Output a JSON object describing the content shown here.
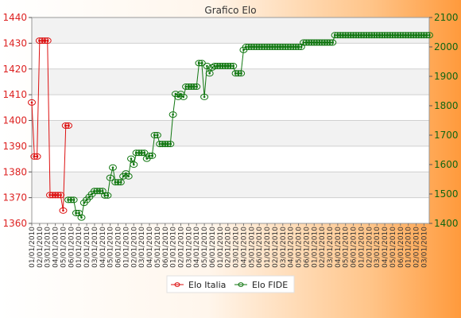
{
  "chart_data": {
    "type": "line",
    "title": "Grafico Elo",
    "left_axis": {
      "ylim": [
        1360,
        1440
      ],
      "ticks": [
        1360,
        1370,
        1380,
        1390,
        1400,
        1410,
        1420,
        1430,
        1440
      ],
      "color": "#dd2222"
    },
    "right_axis": {
      "ylim": [
        1400,
        2100
      ],
      "ticks": [
        1400,
        1500,
        1600,
        1700,
        1800,
        1900,
        2000,
        2100
      ],
      "color": "#116611"
    },
    "x_count": 153,
    "x_tick_labels": [
      "01/01/2010",
      "02/01/2010",
      "03/01/2010",
      "04/01/2010",
      "05/01/2010",
      "06/01/2010"
    ],
    "series": [
      {
        "name": "Elo Italia",
        "axis": "left",
        "color": "#dd1111",
        "points": [
          [
            0,
            1407
          ],
          [
            1,
            1386
          ],
          [
            2,
            1386
          ],
          [
            3,
            1431
          ],
          [
            4,
            1431
          ],
          [
            5,
            1431
          ],
          [
            6,
            1431
          ],
          [
            7,
            1371
          ],
          [
            8,
            1371
          ],
          [
            9,
            1371
          ],
          [
            10,
            1371
          ],
          [
            11,
            1371
          ],
          [
            12,
            1365
          ],
          [
            13,
            1398
          ],
          [
            14,
            1398
          ]
        ]
      },
      {
        "name": "Elo FIDE",
        "axis": "right",
        "color": "#117711",
        "points": [
          [
            14,
            1480
          ],
          [
            15,
            1480
          ],
          [
            16,
            1480
          ],
          [
            17,
            1435
          ],
          [
            18,
            1435
          ],
          [
            19,
            1420
          ],
          [
            20,
            1470
          ],
          [
            21,
            1480
          ],
          [
            22,
            1490
          ],
          [
            23,
            1500
          ],
          [
            24,
            1510
          ],
          [
            25,
            1510
          ],
          [
            26,
            1510
          ],
          [
            27,
            1510
          ],
          [
            28,
            1495
          ],
          [
            29,
            1495
          ],
          [
            30,
            1555
          ],
          [
            31,
            1590
          ],
          [
            32,
            1540
          ],
          [
            33,
            1540
          ],
          [
            34,
            1540
          ],
          [
            35,
            1560
          ],
          [
            36,
            1570
          ],
          [
            37,
            1560
          ],
          [
            38,
            1620
          ],
          [
            39,
            1600
          ],
          [
            40,
            1640
          ],
          [
            41,
            1640
          ],
          [
            42,
            1640
          ],
          [
            43,
            1640
          ],
          [
            44,
            1620
          ],
          [
            45,
            1630
          ],
          [
            46,
            1630
          ],
          [
            47,
            1700
          ],
          [
            48,
            1700
          ],
          [
            49,
            1670
          ],
          [
            50,
            1670
          ],
          [
            51,
            1670
          ],
          [
            52,
            1670
          ],
          [
            53,
            1670
          ],
          [
            54,
            1770
          ],
          [
            55,
            1840
          ],
          [
            56,
            1830
          ],
          [
            57,
            1840
          ],
          [
            58,
            1830
          ],
          [
            59,
            1865
          ],
          [
            60,
            1865
          ],
          [
            61,
            1865
          ],
          [
            62,
            1865
          ],
          [
            63,
            1865
          ],
          [
            64,
            1945
          ],
          [
            65,
            1945
          ],
          [
            66,
            1830
          ],
          [
            67,
            1935
          ],
          [
            68,
            1910
          ],
          [
            69,
            1930
          ],
          [
            70,
            1935
          ],
          [
            71,
            1935
          ],
          [
            72,
            1935
          ],
          [
            73,
            1935
          ],
          [
            74,
            1935
          ],
          [
            75,
            1935
          ],
          [
            76,
            1935
          ],
          [
            77,
            1935
          ],
          [
            78,
            1910
          ],
          [
            79,
            1910
          ],
          [
            80,
            1910
          ],
          [
            81,
            1990
          ],
          [
            82,
            2000
          ],
          [
            83,
            2000
          ],
          [
            84,
            2000
          ],
          [
            85,
            2000
          ],
          [
            86,
            2000
          ],
          [
            87,
            2000
          ],
          [
            88,
            2000
          ],
          [
            89,
            2000
          ],
          [
            90,
            2000
          ],
          [
            91,
            2000
          ],
          [
            92,
            2000
          ],
          [
            93,
            2000
          ],
          [
            94,
            2000
          ],
          [
            95,
            2000
          ],
          [
            96,
            2000
          ],
          [
            97,
            2000
          ],
          [
            98,
            2000
          ],
          [
            99,
            2000
          ],
          [
            100,
            2000
          ],
          [
            101,
            2000
          ],
          [
            102,
            2000
          ],
          [
            103,
            2000
          ],
          [
            104,
            2015
          ],
          [
            105,
            2015
          ],
          [
            106,
            2015
          ],
          [
            107,
            2015
          ],
          [
            108,
            2015
          ],
          [
            109,
            2015
          ],
          [
            110,
            2015
          ],
          [
            111,
            2015
          ],
          [
            112,
            2015
          ],
          [
            113,
            2015
          ],
          [
            114,
            2015
          ],
          [
            115,
            2015
          ],
          [
            116,
            2040
          ],
          [
            117,
            2040
          ],
          [
            118,
            2040
          ],
          [
            119,
            2040
          ],
          [
            120,
            2040
          ],
          [
            121,
            2040
          ],
          [
            122,
            2040
          ],
          [
            123,
            2040
          ],
          [
            124,
            2040
          ],
          [
            125,
            2040
          ],
          [
            126,
            2040
          ],
          [
            127,
            2040
          ],
          [
            128,
            2040
          ],
          [
            129,
            2040
          ],
          [
            130,
            2040
          ],
          [
            131,
            2040
          ],
          [
            132,
            2040
          ],
          [
            133,
            2040
          ],
          [
            134,
            2040
          ],
          [
            135,
            2040
          ],
          [
            136,
            2040
          ],
          [
            137,
            2040
          ],
          [
            138,
            2040
          ],
          [
            139,
            2040
          ],
          [
            140,
            2040
          ],
          [
            141,
            2040
          ],
          [
            142,
            2040
          ],
          [
            143,
            2040
          ],
          [
            144,
            2040
          ],
          [
            145,
            2040
          ],
          [
            146,
            2040
          ],
          [
            147,
            2040
          ],
          [
            148,
            2040
          ],
          [
            149,
            2040
          ],
          [
            150,
            2040
          ],
          [
            151,
            2040
          ],
          [
            152,
            2040
          ]
        ]
      }
    ],
    "legend": {
      "position": "bottom-center",
      "items": [
        "Elo Italia",
        "Elo FIDE"
      ]
    },
    "grid": true
  }
}
